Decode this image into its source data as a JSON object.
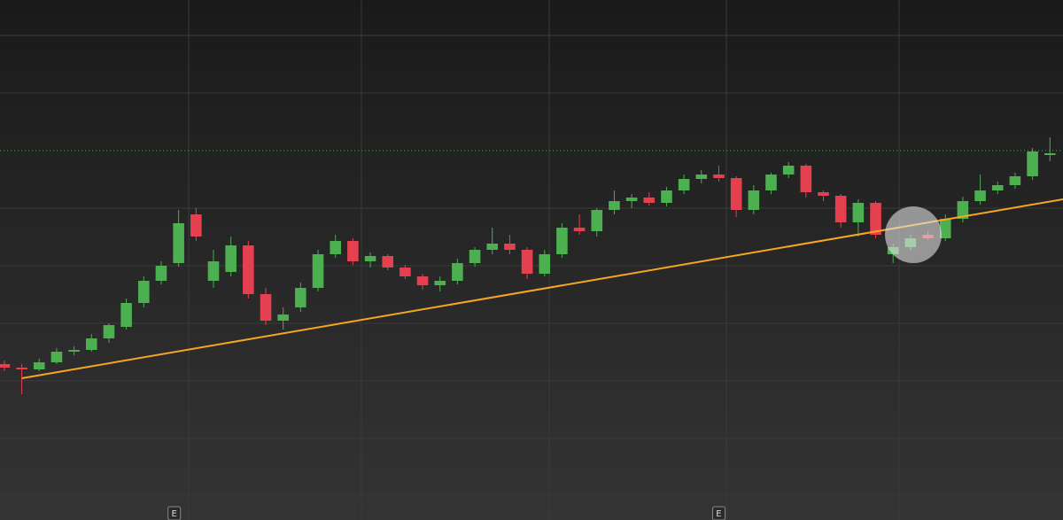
{
  "chart_data": {
    "type": "candlestick",
    "x": [
      0,
      1,
      2,
      3,
      4,
      5,
      6,
      7,
      8,
      9,
      10,
      11,
      12,
      13,
      14,
      15,
      16,
      17,
      18,
      19,
      20,
      21,
      22,
      23,
      24,
      25,
      26,
      27,
      28,
      29,
      30,
      31,
      32,
      33,
      34,
      35,
      36,
      37,
      38,
      39,
      40,
      41,
      42,
      43,
      44,
      45,
      46,
      47,
      48,
      49,
      50,
      51,
      52,
      53,
      54,
      55,
      56,
      57,
      58,
      59,
      60
    ],
    "xlim": [
      -0.25,
      60.75
    ],
    "open": [
      176,
      172,
      170,
      178,
      190,
      192,
      205,
      218,
      245,
      270,
      290,
      345,
      270,
      280,
      310,
      255,
      225,
      240,
      262,
      300,
      315,
      292,
      298,
      285,
      275,
      265,
      270,
      290,
      305,
      312,
      305,
      278,
      300,
      330,
      326,
      350,
      360,
      364,
      358,
      372,
      385,
      390,
      386,
      350,
      372,
      390,
      400,
      370,
      366,
      336,
      358,
      300,
      308,
      322,
      318,
      340,
      360,
      372,
      378,
      388,
      412
    ],
    "high": [
      180,
      176,
      182,
      194,
      196,
      210,
      222,
      250,
      275,
      292,
      350,
      352,
      305,
      320,
      315,
      262,
      240,
      268,
      305,
      322,
      318,
      302,
      300,
      288,
      278,
      275,
      295,
      308,
      330,
      322,
      308,
      305,
      335,
      345,
      352,
      372,
      368,
      370,
      376,
      390,
      395,
      400,
      388,
      378,
      392,
      404,
      402,
      372,
      368,
      362,
      360,
      312,
      322,
      326,
      345,
      365,
      390,
      382,
      392,
      420,
      432
    ],
    "low": [
      168,
      142,
      168,
      176,
      186,
      190,
      200,
      215,
      240,
      266,
      286,
      315,
      262,
      275,
      250,
      220,
      215,
      235,
      258,
      296,
      288,
      285,
      282,
      272,
      260,
      258,
      266,
      286,
      300,
      300,
      272,
      275,
      296,
      322,
      320,
      345,
      352,
      355,
      354,
      368,
      380,
      382,
      342,
      345,
      368,
      386,
      364,
      360,
      330,
      320,
      318,
      290,
      304,
      316,
      315,
      336,
      356,
      368,
      374,
      384,
      405
    ],
    "close": [
      172,
      170,
      178,
      190,
      192,
      205,
      220,
      245,
      270,
      287,
      335,
      320,
      292,
      310,
      255,
      225,
      232,
      262,
      300,
      315,
      292,
      298,
      285,
      275,
      265,
      270,
      290,
      305,
      312,
      305,
      278,
      300,
      330,
      326,
      350,
      360,
      364,
      358,
      372,
      385,
      390,
      386,
      350,
      372,
      390,
      400,
      370,
      366,
      336,
      358,
      322,
      308,
      318,
      318,
      340,
      360,
      372,
      378,
      388,
      416,
      414
    ],
    "up_color": "#4caf50",
    "down_color": "#e5404f",
    "ylim": [
      0,
      587
    ],
    "trendline": {
      "x": [
        1,
        60.75
      ],
      "values": [
        160,
        362
      ],
      "color": "#f5a623"
    },
    "reference_line": {
      "value": 417,
      "color": "#4caf50"
    },
    "events": [
      {
        "x": 9.75,
        "label": "E"
      },
      {
        "x": 41,
        "label": "E"
      }
    ]
  }
}
